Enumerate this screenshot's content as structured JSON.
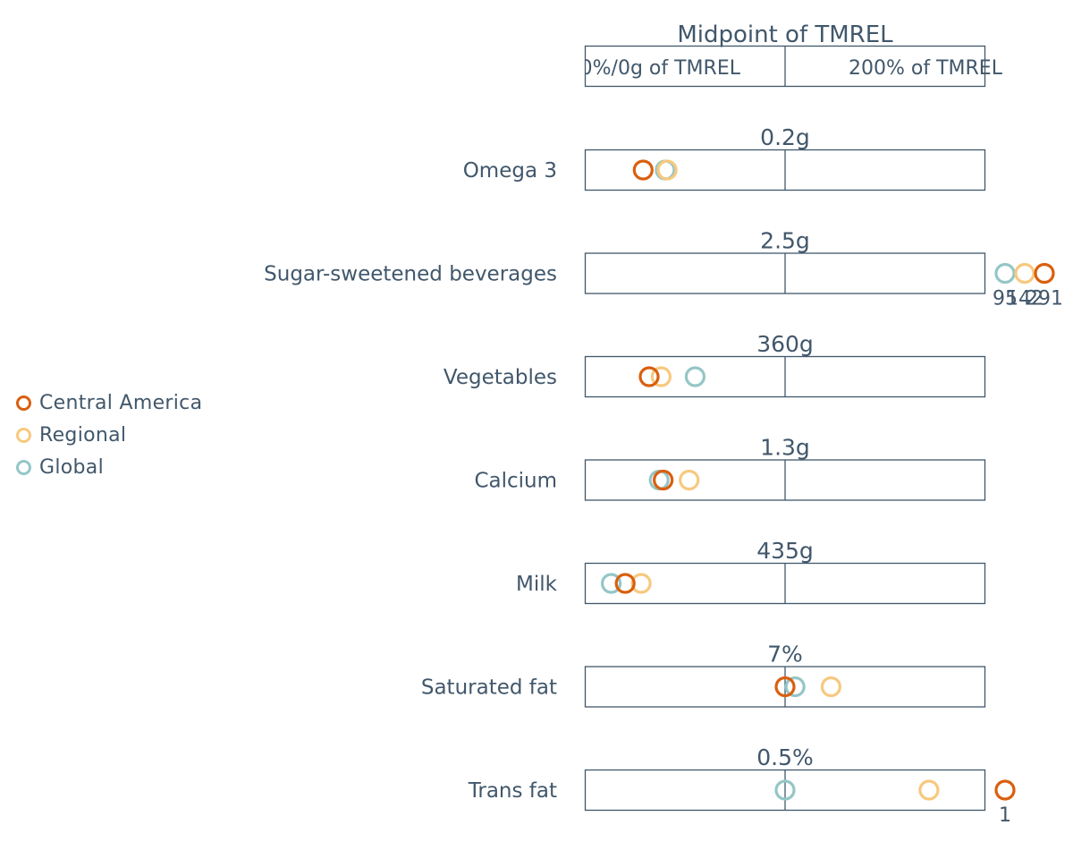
{
  "chart_data": {
    "type": "dot",
    "title": "Midpoint of TMREL",
    "header_left_label": "0%/0g of TMREL",
    "header_right_label": "200% of TMREL",
    "xlim": [
      0,
      200
    ],
    "x_unit": "% of TMREL midpoint",
    "colors": {
      "Central America": "#d95f0e",
      "Regional": "#f7c97e",
      "Global": "#95c6c7",
      "frame": "#41576b"
    },
    "series": [
      {
        "name": "Central America"
      },
      {
        "name": "Regional"
      },
      {
        "name": "Global"
      }
    ],
    "rows": [
      {
        "label": "Omega 3",
        "tmrel": "0.2g",
        "values": {
          "Central America": 29,
          "Regional": 41,
          "Global": 40
        },
        "overflow": []
      },
      {
        "label": "Sugar-sweetened beverages",
        "tmrel": "2.5g",
        "values": {
          "Central America": 291,
          "Regional": 142,
          "Global": 95
        },
        "overflow": [
          "Global",
          "Regional",
          "Central America"
        ],
        "overflow_labels": [
          "95",
          "142",
          "291"
        ]
      },
      {
        "label": "Vegetables",
        "tmrel": "360g",
        "values": {
          "Central America": 32,
          "Regional": 38,
          "Global": 55
        },
        "overflow": []
      },
      {
        "label": "Calcium",
        "tmrel": "1.3g",
        "values": {
          "Central America": 39,
          "Regional": 52,
          "Global": 37
        },
        "overflow": []
      },
      {
        "label": "Milk",
        "tmrel": "435g",
        "values": {
          "Central America": 20,
          "Regional": 28,
          "Global": 13
        },
        "overflow": []
      },
      {
        "label": "Saturated fat",
        "tmrel": "7%",
        "values": {
          "Central America": 100,
          "Regional": 123,
          "Global": 105
        },
        "overflow": []
      },
      {
        "label": "Trans fat",
        "tmrel": "0.5%",
        "values": {
          "Central America": 200,
          "Regional": 172,
          "Global": 100
        },
        "overflow": [
          "Central America"
        ],
        "overflow_labels": [
          "1"
        ]
      }
    ]
  },
  "legend": {
    "items": [
      {
        "label": "Central America",
        "color": "#d95f0e"
      },
      {
        "label": "Regional",
        "color": "#f7c97e"
      },
      {
        "label": "Global",
        "color": "#95c6c7"
      }
    ]
  }
}
